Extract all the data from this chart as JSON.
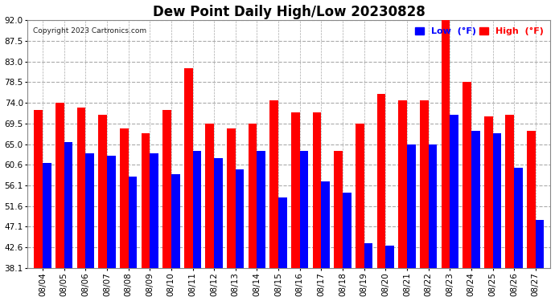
{
  "title": "Dew Point Daily High/Low 20230828",
  "copyright": "Copyright 2023 Cartronics.com",
  "dates": [
    "08/04",
    "08/05",
    "08/06",
    "08/07",
    "08/08",
    "08/09",
    "08/10",
    "08/11",
    "08/12",
    "08/13",
    "08/14",
    "08/15",
    "08/16",
    "08/17",
    "08/18",
    "08/19",
    "08/20",
    "08/21",
    "08/22",
    "08/23",
    "08/24",
    "08/25",
    "08/26",
    "08/27"
  ],
  "high": [
    72.5,
    74.0,
    73.0,
    71.5,
    68.5,
    67.5,
    72.5,
    81.5,
    69.5,
    68.5,
    69.5,
    74.5,
    72.0,
    72.0,
    63.5,
    69.5,
    76.0,
    74.5,
    74.5,
    92.0,
    78.5,
    71.0,
    71.5,
    68.0
  ],
  "low": [
    61.0,
    65.5,
    63.0,
    62.5,
    58.0,
    63.0,
    58.5,
    63.5,
    62.0,
    59.5,
    63.5,
    53.5,
    63.5,
    57.0,
    54.5,
    43.5,
    43.0,
    65.0,
    65.0,
    71.5,
    68.0,
    67.5,
    60.0,
    48.5
  ],
  "high_color": "#ff0000",
  "low_color": "#0000ff",
  "bg_color": "#ffffff",
  "grid_color": "#aaaaaa",
  "ymin": 38.1,
  "ylim": [
    38.1,
    92.0
  ],
  "yticks": [
    38.1,
    42.6,
    47.1,
    51.6,
    56.1,
    60.6,
    65.0,
    69.5,
    74.0,
    78.5,
    83.0,
    87.5,
    92.0
  ],
  "title_fontsize": 12,
  "legend_low_label": "Low  (°F)",
  "legend_high_label": "High  (°F)"
}
